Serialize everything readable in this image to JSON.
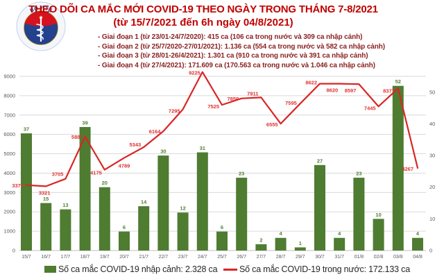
{
  "header": {
    "title_line1": "THEO DÕI CA MẮC MỚI COVID-19 THEO NGÀY TRONG THÁNG 7-8/2021",
    "title_line2": "(từ 15/7/2021 đến 6h ngày 04/8/2021)",
    "stages": [
      "- Giai đoạn 1 (từ 23/01-24/7/2020): 415 ca (106 ca trong nước và 309 ca nhập cảnh)",
      "- Giai đoạn 2 (từ 25/7/2020-27/01/2021): 1.136 ca (554 ca trong nước và 582 ca nhập cảnh)",
      "- Giai đoạn 3 (từ 28/01-26/4/2021): 1.301 ca (910 ca trong nước và 391 ca nhập cảnh)",
      "- Giai đoạn 4 (từ 27/4/2021): 171.609 ca (170.563 ca trong nước và 1.046 ca nhập cảnh)"
    ],
    "logo": {
      "top_text": "BỘ Y TẾ",
      "bottom_text": "MINISTRY OF HEALTH"
    }
  },
  "chart_data": {
    "type": "bar",
    "subtype": "combo-bar-line-dual-axis",
    "categories": [
      "15/7",
      "16/7",
      "17/7",
      "18/7",
      "19/7",
      "20/7",
      "21/7",
      "22/7",
      "23/7",
      "24/7",
      "25/7",
      "26/7",
      "27/7",
      "28/7",
      "29/7",
      "30/7",
      "31/7",
      "01/8",
      "02/8",
      "03/8",
      "04/8"
    ],
    "series": [
      {
        "name": "Số ca mắc COVID-19 nhập cảnh",
        "type": "bar",
        "axis": "right",
        "values": [
          37,
          15,
          13,
          39,
          20,
          6,
          14,
          30,
          12,
          31,
          6,
          23,
          2,
          4,
          1,
          27,
          4,
          23,
          10,
          52,
          4
        ]
      },
      {
        "name": "Số ca mắc COVID-19 trong nước",
        "type": "line",
        "axis": "left",
        "values": [
          3379,
          3321,
          3705,
          5887,
          4175,
          4789,
          5343,
          6164,
          7295,
          9225,
          7525,
          7859,
          7911,
          6555,
          7595,
          8622,
          8620,
          8597,
          7445,
          8377,
          4267
        ]
      }
    ],
    "left_axis": {
      "min": 0,
      "max": 9000,
      "step": 1000,
      "ticks": [
        0,
        1000,
        2000,
        3000,
        4000,
        5000,
        6000,
        7000,
        8000,
        9000
      ]
    },
    "right_axis": {
      "min": 0,
      "max": 50,
      "step": 10,
      "ticks": [
        0,
        10,
        20,
        30,
        40,
        50
      ]
    },
    "grid": true,
    "legend_position": "bottom",
    "colors": {
      "bar": "#4e7c31",
      "bar_label": "#538135",
      "line": "#d92525",
      "line_label": "#e03232",
      "axis_text": "#595959",
      "gridline": "#d9d9d9",
      "axis_line": "#bfbfbf"
    }
  },
  "legend": {
    "items": [
      {
        "label": "Số ca mắc COVID-19 nhập cảnh: 2.328 ca",
        "swatch": "bar-green"
      },
      {
        "label": "Số ca mắc COVID-19 trong nước: 172.133 ca",
        "swatch": "line-red"
      }
    ]
  }
}
